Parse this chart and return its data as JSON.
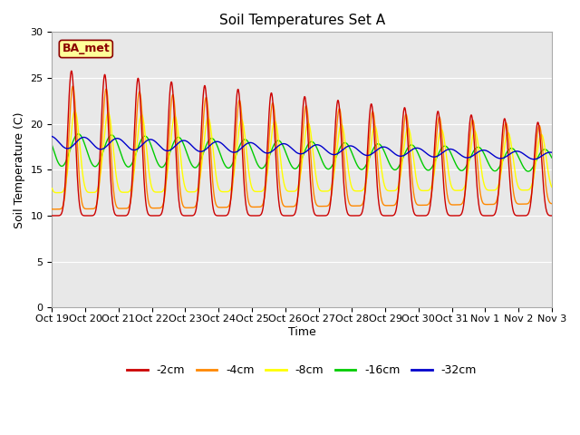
{
  "title": "Soil Temperatures Set A",
  "xlabel": "Time",
  "ylabel": "Soil Temperature (C)",
  "ylim": [
    0,
    30
  ],
  "yticks": [
    0,
    5,
    10,
    15,
    20,
    25,
    30
  ],
  "colors": {
    "-2cm": "#cc0000",
    "-4cm": "#ff8800",
    "-8cm": "#ffff00",
    "-16cm": "#00cc00",
    "-32cm": "#0000cc"
  },
  "legend_label": "BA_met",
  "legend_box_color": "#ffff99",
  "legend_box_edge_color": "#8b0000",
  "background_color": "#e8e8e8",
  "xtick_labels": [
    "Oct 19",
    "Oct 20",
    "Oct 21",
    "Oct 22",
    "Oct 23",
    "Oct 24",
    "Oct 25",
    "Oct 26",
    "Oct 27",
    "Oct 28",
    "Oct 29",
    "Oct 30",
    "Oct 31",
    "Nov 1",
    "Nov 2",
    "Nov 3"
  ],
  "num_days": 15,
  "samples_per_day": 144,
  "title_fontsize": 11,
  "axis_label_fontsize": 9,
  "tick_fontsize": 8,
  "line_width": 1.0
}
